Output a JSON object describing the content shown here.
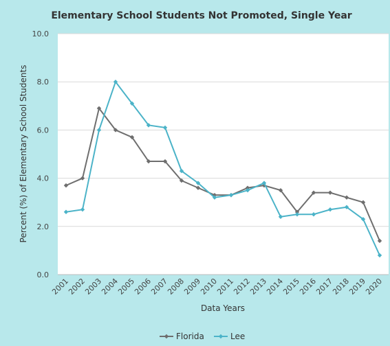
{
  "chart_data": {
    "type": "line",
    "title": "Elementary School Students Not Promoted, Single Year",
    "xlabel": "Data Years",
    "ylabel": "Percent (%) of Elementary School Students",
    "ylim": [
      0,
      10
    ],
    "yticks": [
      "0.0",
      "2.0",
      "4.0",
      "6.0",
      "8.0",
      "10.0"
    ],
    "grid": true,
    "legend_position": "bottom",
    "categories": [
      "2001",
      "2002",
      "2003",
      "2004",
      "2005",
      "2006",
      "2007",
      "2008",
      "2009",
      "2010",
      "2011",
      "2012",
      "2013",
      "2014",
      "2015",
      "2016",
      "2017",
      "2018",
      "2019",
      "2020"
    ],
    "series": [
      {
        "name": "Florida",
        "color": "#6e6e6e",
        "values": [
          3.7,
          4.0,
          6.9,
          6.0,
          5.7,
          4.7,
          4.7,
          3.9,
          3.6,
          3.3,
          3.3,
          3.6,
          3.7,
          3.5,
          2.6,
          3.4,
          3.4,
          3.2,
          3.0,
          1.4
        ]
      },
      {
        "name": "Lee",
        "color": "#4bb3c8",
        "values": [
          2.6,
          2.7,
          6.0,
          8.0,
          7.1,
          6.2,
          6.1,
          4.3,
          3.8,
          3.2,
          3.3,
          3.5,
          3.8,
          2.4,
          2.5,
          2.5,
          2.7,
          2.8,
          2.3,
          0.8
        ]
      }
    ]
  }
}
